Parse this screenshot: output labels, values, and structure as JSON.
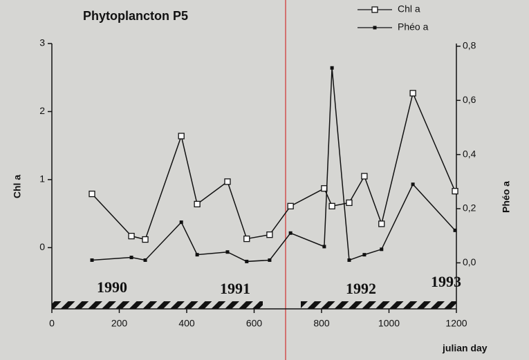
{
  "chart_data": {
    "type": "line",
    "title": "Phytoplancton P5",
    "xlabel": "julian day",
    "ylabel": "Chl a",
    "y2label": "Phéo a",
    "annotations": [
      "1990",
      "1991",
      "1992",
      "1993"
    ],
    "xlim": [
      0,
      1200
    ],
    "xticks": [
      0,
      200,
      400,
      600,
      800,
      1000,
      1200
    ],
    "ylim": [
      -0.9,
      3
    ],
    "yticks": [
      0,
      1,
      2,
      3
    ],
    "y2lim": [
      -0.17,
      0.81
    ],
    "y2ticks": [
      {
        "value": 0,
        "label": "0,0"
      },
      {
        "value": 0.2,
        "label": "0,2"
      },
      {
        "value": 0.4,
        "label": "0,4"
      },
      {
        "value": 0.6,
        "label": "0,6"
      },
      {
        "value": 0.8,
        "label": "0,8"
      }
    ],
    "legend": "top-right",
    "series": [
      {
        "name": "Chl a",
        "color": "#111111",
        "marker": "open-square",
        "axis": "y",
        "x": [
          119,
          236,
          277,
          384,
          431,
          521,
          578,
          646,
          708,
          808,
          831,
          882,
          927,
          978,
          1071,
          1196
        ],
        "values": [
          0.79,
          0.17,
          0.12,
          1.64,
          0.64,
          0.97,
          0.13,
          0.19,
          0.61,
          0.87,
          0.61,
          0.66,
          1.05,
          0.35,
          2.27,
          0.83
        ]
      },
      {
        "name": "Phéo a",
        "color": "#111111",
        "marker": "filled-square",
        "axis": "y2",
        "x": [
          119,
          236,
          277,
          384,
          431,
          521,
          578,
          646,
          708,
          808,
          831,
          882,
          927,
          978,
          1071,
          1196
        ],
        "values": [
          0.01,
          0.02,
          0.01,
          0.15,
          0.03,
          0.04,
          0.005,
          0.01,
          0.11,
          0.06,
          0.72,
          0.01,
          0.03,
          0.05,
          0.29,
          0.12
        ]
      }
    ]
  }
}
